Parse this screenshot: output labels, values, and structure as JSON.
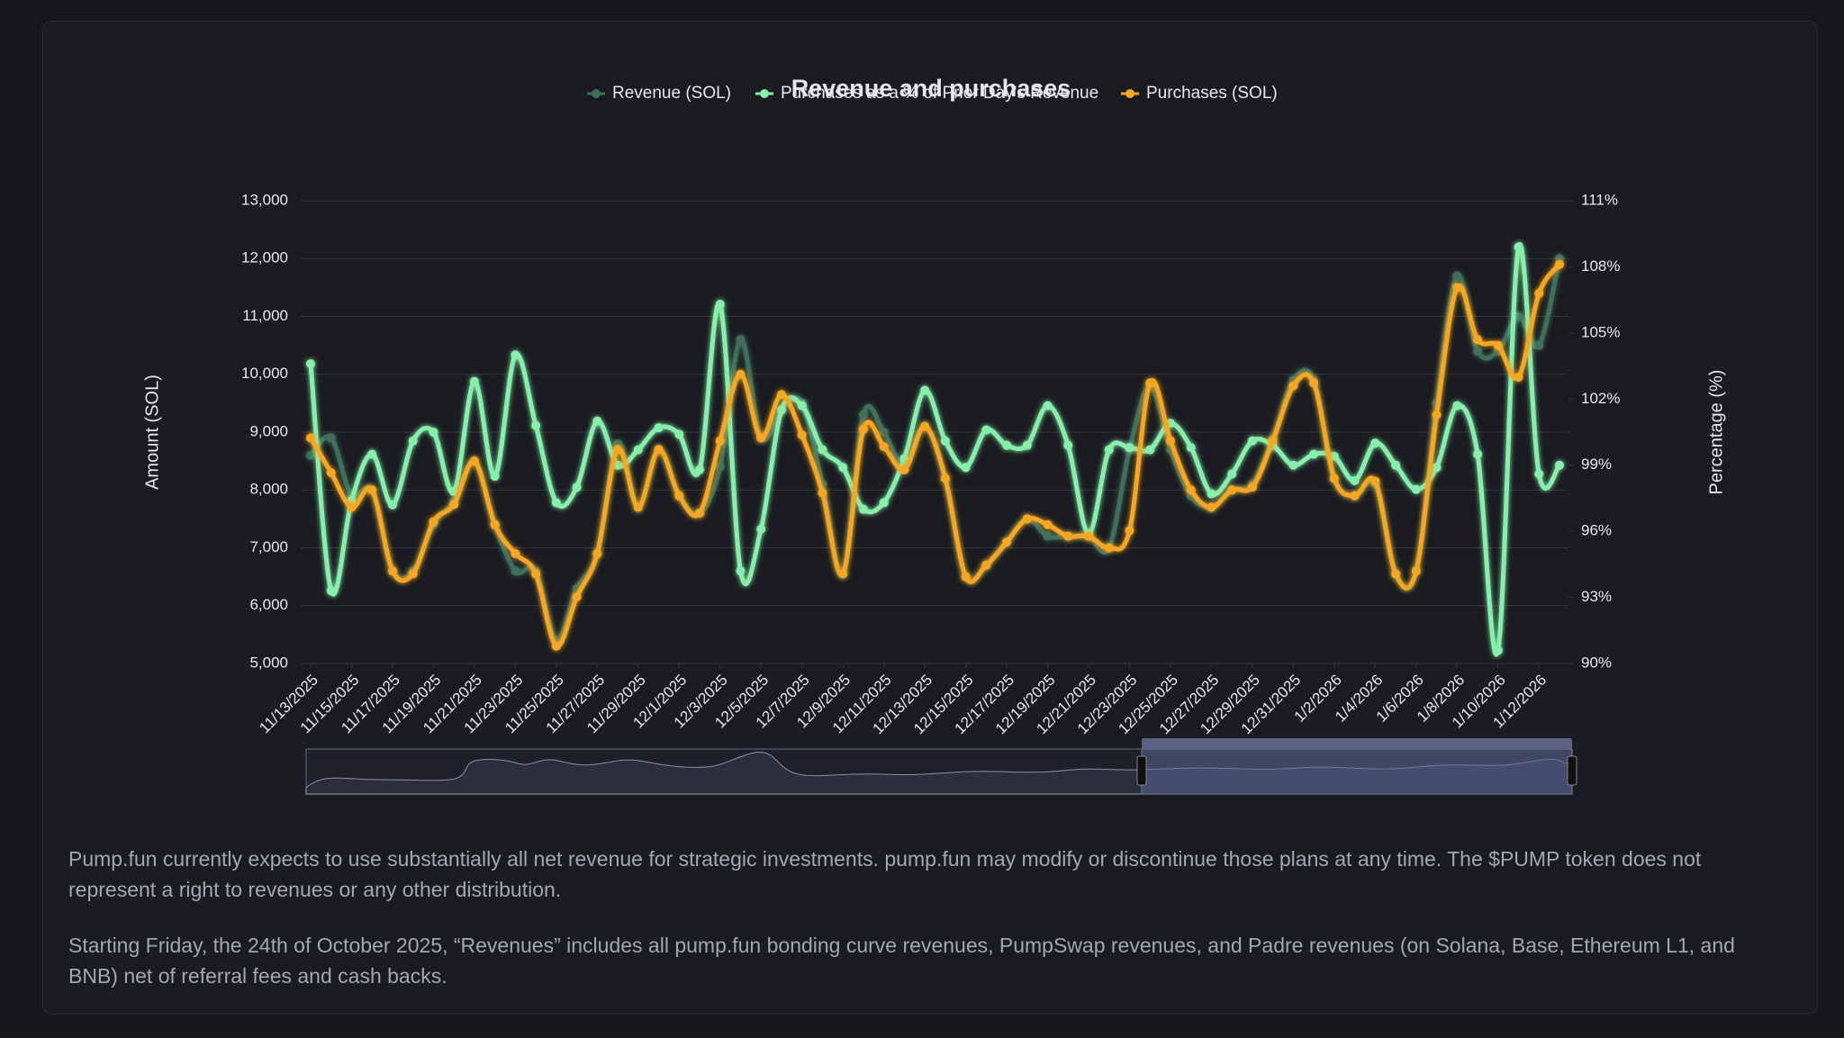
{
  "chart_data": {
    "type": "line",
    "title": "Revenue and purchases",
    "y_label": "Amount (SOL)",
    "y2_label": "Percentage (%)",
    "categories": [
      "11/13/2025",
      null,
      "11/15/2025",
      null,
      "11/17/2025",
      null,
      "11/19/2025",
      null,
      "11/21/2025",
      null,
      "11/23/2025",
      null,
      "11/25/2025",
      null,
      "11/27/2025",
      null,
      "11/29/2025",
      null,
      "12/1/2025",
      null,
      "12/3/2025",
      null,
      "12/5/2025",
      null,
      "12/7/2025",
      null,
      "12/9/2025",
      null,
      "12/11/2025",
      null,
      "12/13/2025",
      null,
      "12/15/2025",
      null,
      "12/17/2025",
      null,
      "12/19/2025",
      null,
      "12/21/2025",
      null,
      "12/23/2025",
      null,
      "12/25/2025",
      null,
      "12/27/2025",
      null,
      "12/29/2025",
      null,
      "12/31/2025",
      null,
      "1/2/2026",
      null,
      "1/4/2026",
      null,
      "1/6/2026",
      null,
      "1/8/2026",
      null,
      "1/10/2026",
      null,
      "1/12/2026",
      null
    ],
    "series": [
      {
        "name": "Revenue (SOL)",
        "color": "#3f6f5c",
        "axis": "y",
        "values": [
          8600,
          8900,
          7900,
          8000,
          6600,
          6600,
          7400,
          7800,
          8500,
          7400,
          6600,
          6600,
          5400,
          6300,
          6900,
          8800,
          7700,
          8700,
          7900,
          7600,
          8400,
          10600,
          8900,
          9400,
          9500,
          8100,
          6550,
          9300,
          9000,
          8400,
          9100,
          8200,
          6500,
          6700,
          7100,
          7500,
          7200,
          7200,
          7200,
          7000,
          8700,
          9800,
          8700,
          7900,
          7700,
          8000,
          8100,
          8900,
          9900,
          9900,
          8200,
          7900,
          8100,
          6550,
          6600,
          9500,
          11700,
          10400,
          10400,
          11000,
          10500,
          12000
        ]
      },
      {
        "name": "Purchases as a % of Prior Day's Revenue",
        "color": "#86efac",
        "axis": "y2",
        "values": [
          103.6,
          93.3,
          97.4,
          99.5,
          97.2,
          100.1,
          100.5,
          97.8,
          102.8,
          98.5,
          104.0,
          100.8,
          97.3,
          98.0,
          101.0,
          99.0,
          99.7,
          100.7,
          100.4,
          98.8,
          106.3,
          94.2,
          96.1,
          101.5,
          101.7,
          99.7,
          98.9,
          97.0,
          97.3,
          99.3,
          102.4,
          100.1,
          98.9,
          100.6,
          99.9,
          99.9,
          101.7,
          99.9,
          95.9,
          99.7,
          99.8,
          99.7,
          100.9,
          99.8,
          97.7,
          98.6,
          100.1,
          99.9,
          99.0,
          99.5,
          99.4,
          98.3,
          100.0,
          99.0,
          97.9,
          98.9,
          101.7,
          99.5,
          90.6,
          108.9,
          98.6,
          99.0
        ]
      },
      {
        "name": "Purchases (SOL)",
        "color": "#f5a623",
        "axis": "y",
        "values": [
          8900,
          8300,
          7700,
          8000,
          6600,
          6550,
          7450,
          7750,
          8500,
          7400,
          6900,
          6550,
          5300,
          6150,
          6900,
          8700,
          7700,
          8700,
          7900,
          7600,
          8850,
          10000,
          8900,
          9650,
          8950,
          7950,
          6550,
          9050,
          8750,
          8350,
          9100,
          8200,
          6500,
          6700,
          7100,
          7500,
          7400,
          7200,
          7200,
          7000,
          7300,
          9850,
          8850,
          8000,
          7700,
          8000,
          8050,
          8850,
          9800,
          9850,
          8200,
          7900,
          8150,
          6550,
          6600,
          9300,
          11500,
          10600,
          10500,
          9950,
          11400,
          11900
        ]
      }
    ],
    "ylim": [
      5000,
      13000
    ],
    "yticks": [
      {
        "value": 5000,
        "label": "5,000"
      },
      {
        "value": 6000,
        "label": "6,000"
      },
      {
        "value": 7000,
        "label": "7,000"
      },
      {
        "value": 8000,
        "label": "8,000"
      },
      {
        "value": 9000,
        "label": "9,000"
      },
      {
        "value": 10000,
        "label": "10,000"
      },
      {
        "value": 11000,
        "label": "11,000"
      },
      {
        "value": 12000,
        "label": "12,000"
      },
      {
        "value": 13000,
        "label": "13,000"
      }
    ],
    "y2lim": [
      90,
      111
    ],
    "y2ticks": [
      {
        "value": 90,
        "label": "90%"
      },
      {
        "value": 93,
        "label": "93%"
      },
      {
        "value": 96,
        "label": "96%"
      },
      {
        "value": 99,
        "label": "99%"
      },
      {
        "value": 102,
        "label": "102%"
      },
      {
        "value": 105,
        "label": "105%"
      },
      {
        "value": 108,
        "label": "108%"
      },
      {
        "value": 111,
        "label": "111%"
      }
    ],
    "grid": true
  },
  "footnotes": [
    "Pump.fun currently expects to use substantially all net revenue for strategic investments. pump.fun may modify or discontinue those plans at any time. The $PUMP token does not represent a right to revenues or any other distribution.",
    "Starting Friday, the 24th of October 2025, “Revenues” includes all pump.fun bonding curve revenues, PumpSwap revenues, and Padre revenues (on Solana, Base, Ethereum L1, and BNB) net of referral fees and cash backs."
  ]
}
